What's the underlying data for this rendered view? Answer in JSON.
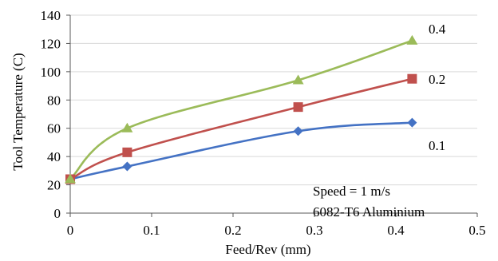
{
  "chart_data": {
    "type": "line",
    "xlabel": "Feed/Rev (mm)",
    "ylabel": "Tool Temperature (C)",
    "xlim": [
      0,
      0.5
    ],
    "ylim": [
      0,
      140
    ],
    "x_ticks": [
      "0",
      "0.1",
      "0.2",
      "0.3",
      "0.4",
      "0.5"
    ],
    "y_ticks": [
      "0",
      "20",
      "40",
      "60",
      "80",
      "100",
      "120",
      "140"
    ],
    "grid": "horizontal",
    "legend": "none",
    "annotations": [
      "Speed = 1 m/s",
      "6082-T6 Aluminium"
    ],
    "series": [
      {
        "name": "0.1",
        "color": "#4472c4",
        "marker": "diamond",
        "x": [
          0,
          0.07,
          0.28,
          0.42
        ],
        "y": [
          24,
          33,
          58,
          64
        ]
      },
      {
        "name": "0.2",
        "color": "#c0504d",
        "marker": "square",
        "x": [
          0,
          0.07,
          0.28,
          0.42
        ],
        "y": [
          24,
          43,
          75,
          95
        ]
      },
      {
        "name": "0.4",
        "color": "#9bbb59",
        "marker": "triangle",
        "x": [
          0,
          0.07,
          0.28,
          0.42
        ],
        "y": [
          24,
          60,
          94,
          122
        ]
      }
    ]
  }
}
